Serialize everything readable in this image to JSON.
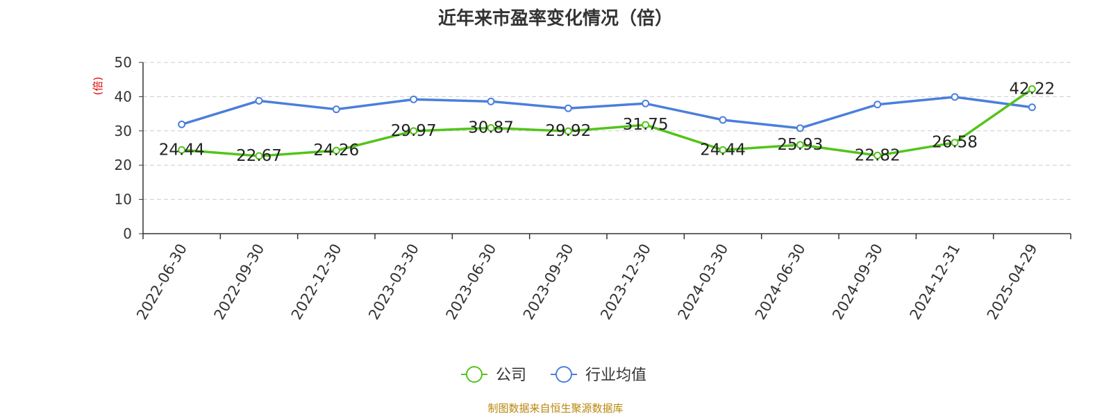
{
  "chart_data": {
    "type": "line",
    "title": "近年来市盈率变化情况（倍）",
    "ylabel": "(倍)",
    "xlabel": "",
    "ylim": [
      0,
      50
    ],
    "yticks": [
      0,
      10,
      20,
      30,
      40,
      50
    ],
    "grid": true,
    "legend_position": "bottom-center",
    "categories": [
      "2022-06-30",
      "2022-09-30",
      "2022-12-30",
      "2023-03-30",
      "2023-06-30",
      "2023-09-30",
      "2023-12-30",
      "2024-03-30",
      "2024-06-30",
      "2024-09-30",
      "2024-12-31",
      "2025-04-29"
    ],
    "series": [
      {
        "name": "公司",
        "color": "#52c41a",
        "values": [
          24.44,
          22.67,
          24.26,
          29.97,
          30.87,
          29.92,
          31.75,
          24.44,
          25.93,
          22.82,
          26.58,
          42.22
        ],
        "labels": [
          "24.44",
          "22.67",
          "24.26",
          "29.97",
          "30.87",
          "29.92",
          "31.75",
          "24.44",
          "25.93",
          "22.82",
          "26.58",
          "42.22"
        ]
      },
      {
        "name": "行业均值",
        "color": "#4a7fdb",
        "values": [
          31.9,
          38.8,
          36.3,
          39.2,
          38.6,
          36.6,
          38.0,
          33.2,
          30.8,
          37.7,
          39.9,
          36.9
        ]
      }
    ]
  },
  "source_note": "制图数据来自恒生聚源数据库"
}
